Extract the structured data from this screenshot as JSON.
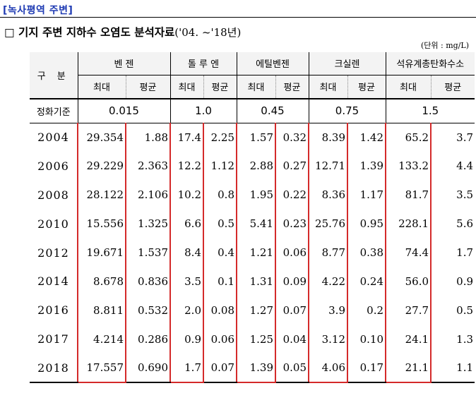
{
  "section_tag": "[녹사평역 주변]",
  "title": {
    "prefix": "□ 기지 주변 지하수 오염도 분석자료",
    "suffix": "('04. ~'18년)"
  },
  "unit": "(단위 : mg/L)",
  "table": {
    "corner_label": "구 분",
    "groups": [
      "벤 젠",
      "톨 루 엔",
      "에틸벤젠",
      "크실렌",
      "석유계총탄화수소"
    ],
    "subheaders": [
      "최대",
      "평균",
      "최대",
      "평균",
      "최대",
      "평균",
      "최대",
      "평균",
      "최대",
      "평균"
    ],
    "standard_label": "정화기준",
    "standards": [
      "0.015",
      "1.0",
      "0.45",
      "0.75",
      "1.5"
    ],
    "rows": [
      {
        "year": "2004",
        "values": [
          "29.354",
          "1.88",
          "17.4",
          "2.25",
          "1.57",
          "0.32",
          "8.39",
          "1.42",
          "65.2",
          "3.7"
        ]
      },
      {
        "year": "2006",
        "values": [
          "29.229",
          "2.363",
          "12.2",
          "1.12",
          "2.88",
          "0.27",
          "12.71",
          "1.39",
          "133.2",
          "4.4"
        ]
      },
      {
        "year": "2008",
        "values": [
          "28.122",
          "2.106",
          "10.2",
          "0.8",
          "1.95",
          "0.22",
          "8.36",
          "1.17",
          "81.7",
          "3.5"
        ]
      },
      {
        "year": "2010",
        "values": [
          "15.556",
          "1.325",
          "6.6",
          "0.5",
          "5.41",
          "0.23",
          "25.76",
          "0.95",
          "228.1",
          "5.6"
        ]
      },
      {
        "year": "2012",
        "values": [
          "19.671",
          "1.537",
          "8.4",
          "0.4",
          "1.21",
          "0.06",
          "8.77",
          "0.38",
          "74.4",
          "1.7"
        ]
      },
      {
        "year": "2014",
        "values": [
          "8.678",
          "0.836",
          "3.5",
          "0.1",
          "1.31",
          "0.09",
          "4.22",
          "0.24",
          "56.0",
          "0.9"
        ]
      },
      {
        "year": "2016",
        "values": [
          "8.811",
          "0.532",
          "2.0",
          "0.08",
          "1.27",
          "0.07",
          "3.9",
          "0.2",
          "27.7",
          "0.5"
        ]
      },
      {
        "year": "2017",
        "values": [
          "4.214",
          "0.286",
          "0.9",
          "0.06",
          "1.25",
          "0.04",
          "3.12",
          "0.10",
          "24.1",
          "1.3"
        ]
      },
      {
        "year": "2018",
        "values": [
          "17.557",
          "0.690",
          "1.7",
          "0.07",
          "1.39",
          "0.05",
          "4.06",
          "0.17",
          "21.1",
          "1.1"
        ]
      }
    ]
  },
  "highlight_color": "#d42a2a"
}
